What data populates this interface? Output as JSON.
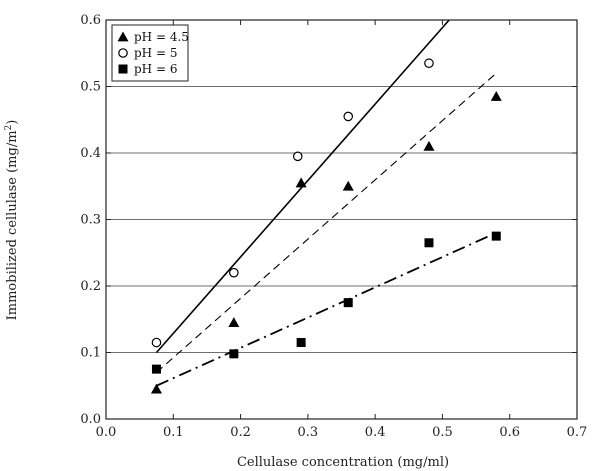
{
  "chart_data": {
    "type": "scatter",
    "title": "",
    "xlabel": "Cellulase concentration (mg/ml)",
    "ylabel_main": "Immobilized cellulase (mg/m",
    "ylabel_sup": "2",
    "ylabel_tail": ")",
    "xlim": [
      0.0,
      0.7
    ],
    "ylim": [
      0.0,
      0.6
    ],
    "xticks": [
      "0.0",
      "0.1",
      "0.2",
      "0.3",
      "0.4",
      "0.5",
      "0.6",
      "0.7"
    ],
    "yticks": [
      "0.0",
      "0.1",
      "0.2",
      "0.3",
      "0.4",
      "0.5",
      "0.6"
    ],
    "grid": "horizontal",
    "legend_position": "top-left",
    "series": [
      {
        "name": "pH = 4.5",
        "marker": "filled-triangle",
        "points": [
          [
            0.075,
            0.045
          ],
          [
            0.19,
            0.145
          ],
          [
            0.29,
            0.355
          ],
          [
            0.36,
            0.35
          ],
          [
            0.48,
            0.41
          ],
          [
            0.58,
            0.485
          ]
        ],
        "fit_line": {
          "style": "dashed",
          "from": [
            0.075,
            0.07
          ],
          "to": [
            0.58,
            0.52
          ]
        }
      },
      {
        "name": "pH = 5",
        "marker": "open-circle",
        "points": [
          [
            0.075,
            0.115
          ],
          [
            0.19,
            0.22
          ],
          [
            0.285,
            0.395
          ],
          [
            0.36,
            0.455
          ],
          [
            0.48,
            0.535
          ]
        ],
        "fit_line": {
          "style": "solid",
          "from": [
            0.075,
            0.1
          ],
          "to": [
            0.51,
            0.6
          ]
        }
      },
      {
        "name": "pH = 6",
        "marker": "filled-square",
        "points": [
          [
            0.075,
            0.075
          ],
          [
            0.19,
            0.098
          ],
          [
            0.29,
            0.115
          ],
          [
            0.36,
            0.175
          ],
          [
            0.48,
            0.265
          ],
          [
            0.58,
            0.275
          ]
        ],
        "fit_line": {
          "style": "dash-dot",
          "from": [
            0.075,
            0.05
          ],
          "to": [
            0.58,
            0.28
          ]
        }
      }
    ]
  }
}
